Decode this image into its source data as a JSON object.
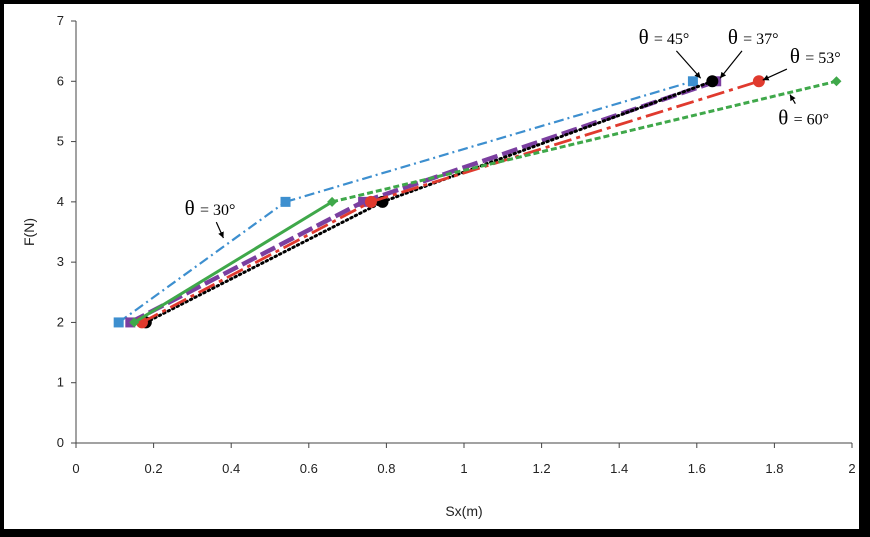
{
  "chart_data": {
    "type": "line",
    "xlabel": "Sx(m)",
    "ylabel": "F(N)",
    "xlim": [
      0,
      2
    ],
    "ylim": [
      0,
      7
    ],
    "xticks": [
      0,
      0.2,
      0.4,
      0.6,
      0.8,
      1,
      1.2,
      1.4,
      1.6,
      1.8,
      2
    ],
    "xtick_labels": [
      "0",
      "0.2",
      "0.4",
      "0.6",
      "0.8",
      "1",
      "1.2",
      "1.4",
      "1.6",
      "1.8",
      "2"
    ],
    "yticks": [
      0,
      1,
      2,
      3,
      4,
      5,
      6,
      7
    ],
    "ytick_labels": [
      "0",
      "1",
      "2",
      "3",
      "4",
      "5",
      "6",
      "7"
    ],
    "grid": false,
    "series": [
      {
        "name": "θ = 30°",
        "color": "#3d8fcf",
        "marker": "square",
        "dash": "dashdot",
        "x": [
          0.11,
          0.54,
          1.59
        ],
        "y": [
          2,
          4,
          6
        ]
      },
      {
        "name": "θ = 37°",
        "color": "#7b3fa0",
        "marker": "square",
        "dash": "longdash",
        "x": [
          0.14,
          0.74,
          1.65
        ],
        "y": [
          2,
          4,
          6
        ]
      },
      {
        "name": "θ = 45°",
        "color": "#000000",
        "marker": "circle",
        "dash": "dotted",
        "x": [
          0.18,
          0.79,
          1.64
        ],
        "y": [
          2,
          4,
          6
        ]
      },
      {
        "name": "θ = 53°",
        "color": "#e03a2e",
        "marker": "circle",
        "dash": "dashdotlong",
        "x": [
          0.17,
          0.76,
          1.76
        ],
        "y": [
          2,
          4,
          6
        ]
      },
      {
        "name": "θ = 60°",
        "color": "#3fa84a",
        "marker": "diamond",
        "dash": "solid-then-dashed",
        "x": [
          0.15,
          0.66,
          1.96
        ],
        "y": [
          2,
          4,
          6
        ]
      }
    ],
    "annotations": [
      {
        "theta": "θ",
        "value": "= 30°",
        "x": 0.28,
        "y": 3.78,
        "arrow_to": [
          0.38,
          3.4
        ]
      },
      {
        "theta": "θ",
        "value": "= 45°",
        "x": 1.45,
        "y": 6.62,
        "arrow_to": [
          1.61,
          6.05
        ]
      },
      {
        "theta": "θ",
        "value": "= 37°",
        "x": 1.68,
        "y": 6.62,
        "arrow_to": [
          1.66,
          6.05
        ]
      },
      {
        "theta": "θ",
        "value": "= 53°",
        "x": 1.84,
        "y": 6.3,
        "arrow_to": [
          1.77,
          6.02
        ]
      },
      {
        "theta": "θ",
        "value": "= 60°",
        "x": 1.81,
        "y": 5.28,
        "arrow_to": [
          1.84,
          5.78
        ]
      }
    ]
  }
}
